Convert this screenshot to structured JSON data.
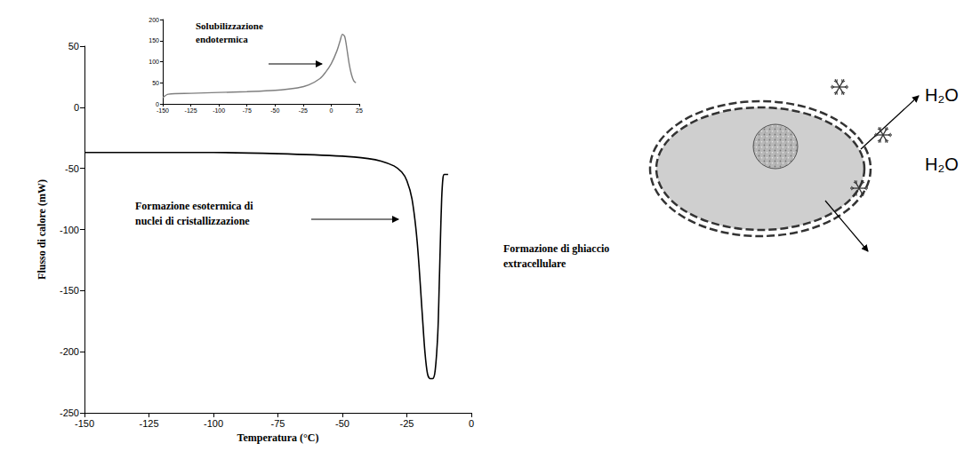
{
  "chart_data": [
    {
      "type": "line",
      "x_label": "Temperatura (°C)",
      "y_label": "Flusso di calore (mW)",
      "annotation": "Formazione esotermica di nuclei di cristallizzazione",
      "x": [
        -150,
        -125,
        -100,
        -75,
        -50,
        -40,
        -35,
        -30,
        -27,
        -25,
        -23,
        -21,
        -19,
        -18,
        -17,
        -16,
        -15,
        -14,
        -13,
        -12.5,
        -12,
        -11.5,
        -11,
        -10.5,
        -10,
        -9
      ],
      "values": [
        -37,
        -37,
        -37,
        -38,
        -40,
        -42,
        -44,
        -48,
        -53,
        -60,
        -75,
        -110,
        -170,
        -200,
        -218,
        -222,
        -222,
        -215,
        -185,
        -150,
        -110,
        -75,
        -58,
        -55,
        -55,
        -55
      ],
      "color": "#000000",
      "xlim": [
        -150,
        0
      ],
      "xticks": [
        -150,
        -125,
        -100,
        -75,
        -50,
        -25,
        0
      ],
      "ylim": [
        -250,
        50
      ],
      "yticks": [
        -250,
        -200,
        -150,
        -100,
        -50,
        0,
        50
      ],
      "grid": false
    },
    {
      "type": "line",
      "annotation": "Solubilizzazione endotermica",
      "x": [
        -150,
        -145,
        -125,
        -100,
        -75,
        -50,
        -30,
        -20,
        -10,
        -5,
        0,
        5,
        8,
        10,
        12,
        14,
        16,
        18,
        20,
        22
      ],
      "values": [
        15,
        23,
        25,
        27,
        29,
        32,
        38,
        45,
        60,
        75,
        95,
        125,
        150,
        165,
        160,
        130,
        95,
        70,
        55,
        50
      ],
      "color": "#7f7f7f",
      "xlim": [
        -150,
        25
      ],
      "xticks": [
        -150,
        -125,
        -100,
        -75,
        -50,
        -25,
        0,
        25
      ],
      "ylim": [
        0,
        200
      ],
      "yticks": [
        0,
        50,
        100,
        150,
        200
      ],
      "grid": false
    }
  ],
  "diagram": {
    "label": "Formazione di ghiaccio extracellulare",
    "molecules": [
      "H₂O",
      "H₂O"
    ]
  }
}
